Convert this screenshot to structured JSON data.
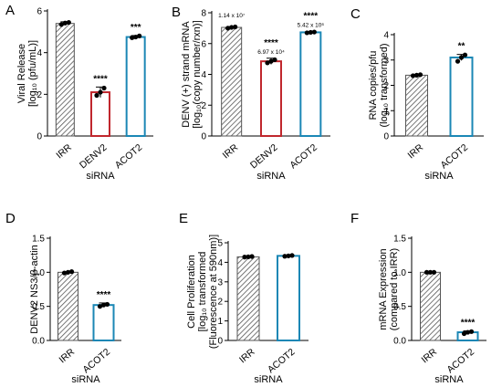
{
  "colors": {
    "IRR": "#555555",
    "DENV2": "#c0272d",
    "ACOT2": "#1b87b5",
    "axis": "#000000",
    "dot": "#000000"
  },
  "chart_data": [
    {
      "panel": "A",
      "type": "bar",
      "categories": [
        "IRR",
        "DENV2",
        "ACOT2"
      ],
      "values": [
        5.4,
        2.1,
        4.75
      ],
      "errors": [
        0.08,
        0.25,
        0.07
      ],
      "points": [
        [
          5.35,
          5.42,
          5.45
        ],
        [
          1.95,
          2.1,
          2.3
        ],
        [
          4.72,
          4.75,
          4.8
        ]
      ],
      "significance": [
        "",
        "****",
        "***"
      ],
      "annotations": [
        "",
        "",
        ""
      ],
      "ylabel_lines": [
        "Viral Release",
        "[log₁₀ (pfu/mL)]"
      ],
      "xlabel": "siRNA",
      "ylim": [
        0,
        6
      ],
      "yticks": [
        0,
        2,
        4,
        6
      ]
    },
    {
      "panel": "B",
      "type": "bar",
      "categories": [
        "IRR",
        "DENV2",
        "ACOT2"
      ],
      "values": [
        7.05,
        4.85,
        6.73
      ],
      "errors": [
        0.05,
        0.2,
        0.05
      ],
      "points": [
        [
          7.0,
          7.05,
          7.08
        ],
        [
          4.75,
          4.85,
          4.95
        ],
        [
          6.7,
          6.73,
          6.75
        ]
      ],
      "significance": [
        "",
        "****",
        "****"
      ],
      "annotations": [
        "1.14 x 10⁷",
        "6.97 x 10⁴",
        "5.42 x 10⁶"
      ],
      "ylabel_lines": [
        "DENV (+) strand mRNA",
        "[log₁₀(copy number/rxn)]"
      ],
      "xlabel": "siRNA",
      "ylim": [
        0,
        8
      ],
      "yticks": [
        0,
        2,
        4,
        6,
        8
      ]
    },
    {
      "panel": "C",
      "type": "bar",
      "categories": [
        "IRR",
        "ACOT2"
      ],
      "values": [
        2.4,
        3.1
      ],
      "errors": [
        0.03,
        0.12
      ],
      "points": [
        [
          2.38,
          2.4,
          2.42
        ],
        [
          2.95,
          3.1,
          3.2
        ]
      ],
      "significance": [
        "",
        "**"
      ],
      "annotations": [
        "",
        ""
      ],
      "ylabel_lines": [
        "RNA copies/pfu",
        "(log₁₀ transformed)"
      ],
      "xlabel": "siRNA",
      "ylim": [
        0,
        4
      ],
      "yticks": [
        0,
        1,
        2,
        3,
        4
      ]
    },
    {
      "panel": "D",
      "type": "bar",
      "categories": [
        "IRR",
        "ACOT2"
      ],
      "values": [
        1.0,
        0.52
      ],
      "errors": [
        0.01,
        0.03
      ],
      "points": [
        [
          0.99,
          1.0,
          1.01
        ],
        [
          0.5,
          0.52,
          0.53
        ]
      ],
      "significance": [
        "",
        "****"
      ],
      "annotations": [
        "",
        ""
      ],
      "ylabel_lines": [
        "DENV2 NS3/β-actin"
      ],
      "xlabel": "siRNA",
      "ylim": [
        0,
        1.5
      ],
      "yticks": [
        0.0,
        0.5,
        1.0,
        1.5
      ]
    },
    {
      "panel": "E",
      "type": "bar",
      "categories": [
        "IRR",
        "ACOT2"
      ],
      "values": [
        4.28,
        4.33
      ],
      "errors": [
        0.02,
        0.02
      ],
      "points": [
        [
          4.27,
          4.28,
          4.3
        ],
        [
          4.31,
          4.33,
          4.35
        ]
      ],
      "significance": [
        "",
        ""
      ],
      "annotations": [
        "",
        ""
      ],
      "ylabel_lines": [
        "Cell Proliferation",
        "[log₁₀ transformed",
        "(Fluorescence at 590nm)]"
      ],
      "xlabel": "siRNA",
      "ylim": [
        0,
        5
      ],
      "yticks": [
        0,
        1,
        2,
        3,
        4,
        5
      ]
    },
    {
      "panel": "F",
      "type": "bar",
      "categories": [
        "IRR",
        "ACOT2"
      ],
      "values": [
        1.0,
        0.12
      ],
      "errors": [
        0.0,
        0.02
      ],
      "points": [
        [
          1.0,
          1.0,
          1.0
        ],
        [
          0.1,
          0.12,
          0.13
        ]
      ],
      "significance": [
        "",
        "****"
      ],
      "annotations": [
        "",
        ""
      ],
      "ylabel_lines": [
        "mRNA Expression",
        "(compared to IRR)"
      ],
      "xlabel": "siRNA",
      "ylim": [
        0,
        1.5
      ],
      "yticks": [
        0.0,
        0.5,
        1.0,
        1.5
      ]
    }
  ]
}
